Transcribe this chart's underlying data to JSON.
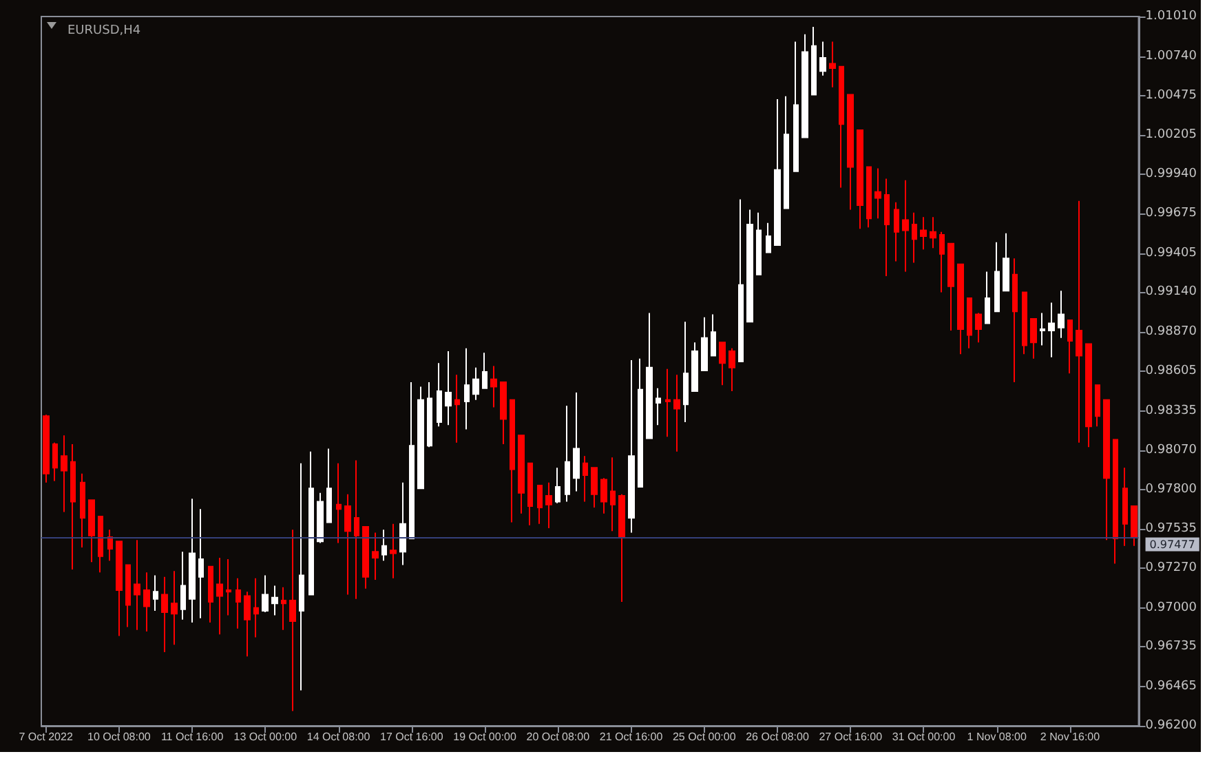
{
  "chart_data": {
    "type": "candlestick",
    "title": "EURUSD,H4",
    "categories": [
      "7 Oct 2022",
      null,
      null,
      null,
      null,
      null,
      null,
      null,
      "10 Oct 08:00",
      null,
      null,
      null,
      null,
      null,
      null,
      null,
      "11 Oct 16:00",
      null,
      null,
      null,
      null,
      null,
      null,
      null,
      "13 Oct 00:00",
      null,
      null,
      null,
      null,
      null,
      null,
      null,
      "14 Oct 08:00",
      null,
      null,
      null,
      null,
      null,
      null,
      null,
      "17 Oct 16:00",
      null,
      null,
      null,
      null,
      null,
      null,
      null,
      "19 Oct 00:00",
      null,
      null,
      null,
      null,
      null,
      null,
      null,
      "20 Oct 08:00",
      null,
      null,
      null,
      null,
      null,
      null,
      null,
      "21 Oct 16:00",
      null,
      null,
      null,
      null,
      null,
      null,
      null,
      "25 Oct 00:00",
      null,
      null,
      null,
      null,
      null,
      null,
      null,
      "26 Oct 08:00",
      null,
      null,
      null,
      null,
      null,
      null,
      null,
      "27 Oct 16:00",
      null,
      null,
      null,
      null,
      null,
      null,
      null,
      "31 Oct 00:00",
      null,
      null,
      null,
      null,
      null,
      null,
      null,
      "1 Nov 08:00",
      null,
      null,
      null,
      null,
      null,
      null,
      null,
      "2 Nov 16:00",
      null,
      null,
      null,
      null,
      null,
      null,
      null
    ],
    "ohlc": [
      [
        0.983,
        0.9831,
        0.9785,
        0.9791
      ],
      [
        0.9811,
        0.9812,
        0.9786,
        0.9795
      ],
      [
        0.9803,
        0.9817,
        0.9765,
        0.9793
      ],
      [
        0.9799,
        0.9811,
        0.9726,
        0.9772
      ],
      [
        0.9785,
        0.9791,
        0.9741,
        0.9761
      ],
      [
        0.9773,
        0.9773,
        0.9731,
        0.9749
      ],
      [
        0.9762,
        0.9762,
        0.9724,
        0.9735
      ],
      [
        0.9748,
        0.9753,
        0.9732,
        0.974
      ],
      [
        0.9745,
        0.9745,
        0.9681,
        0.9712
      ],
      [
        0.9729,
        0.9729,
        0.9687,
        0.9702
      ],
      [
        0.9716,
        0.9746,
        0.9685,
        0.9709
      ],
      [
        0.9712,
        0.9724,
        0.9684,
        0.9701
      ],
      [
        0.9706,
        0.9722,
        0.9698,
        0.9711
      ],
      [
        0.9709,
        0.9721,
        0.967,
        0.9697
      ],
      [
        0.9703,
        0.9725,
        0.9675,
        0.9696
      ],
      [
        0.9699,
        0.9738,
        0.9692,
        0.9715
      ],
      [
        0.9706,
        0.9774,
        0.969,
        0.9737
      ],
      [
        0.9721,
        0.9767,
        0.9693,
        0.9733
      ],
      [
        0.9728,
        0.9728,
        0.969,
        0.9704
      ],
      [
        0.9716,
        0.9734,
        0.9682,
        0.9708
      ],
      [
        0.9712,
        0.9733,
        0.9695,
        0.9711
      ],
      [
        0.9712,
        0.972,
        0.9686,
        0.9704
      ],
      [
        0.9708,
        0.9711,
        0.9667,
        0.9692
      ],
      [
        0.97,
        0.972,
        0.968,
        0.9696
      ],
      [
        0.9698,
        0.9722,
        0.9697,
        0.9709
      ],
      [
        0.9703,
        0.9715,
        0.9695,
        0.9707
      ],
      [
        0.9705,
        0.9714,
        0.9685,
        0.9703
      ],
      [
        0.9705,
        0.9753,
        0.963,
        0.9691
      ],
      [
        0.9698,
        0.9798,
        0.9644,
        0.9722
      ],
      [
        0.9709,
        0.9806,
        0.9709,
        0.9781
      ],
      [
        0.9745,
        0.9778,
        0.9744,
        0.9772
      ],
      [
        0.9758,
        0.9808,
        0.9758,
        0.9781
      ],
      [
        0.977,
        0.9798,
        0.9744,
        0.9767
      ],
      [
        0.9769,
        0.9777,
        0.9709,
        0.9752
      ],
      [
        0.9761,
        0.98,
        0.9706,
        0.9749
      ],
      [
        0.9755,
        0.9755,
        0.9713,
        0.9721
      ],
      [
        0.9738,
        0.9751,
        0.9719,
        0.9734
      ],
      [
        0.9736,
        0.9753,
        0.9732,
        0.9742
      ],
      [
        0.9739,
        0.9757,
        0.972,
        0.9737
      ],
      [
        0.9738,
        0.9785,
        0.9729,
        0.9757
      ],
      [
        0.9747,
        0.9853,
        0.9747,
        0.981
      ],
      [
        0.9781,
        0.985,
        0.9781,
        0.9841
      ],
      [
        0.981,
        0.9853,
        0.9809,
        0.9842
      ],
      [
        0.9826,
        0.9866,
        0.9823,
        0.9847
      ],
      [
        0.9837,
        0.9874,
        0.9824,
        0.9846
      ],
      [
        0.9841,
        0.9858,
        0.9812,
        0.9838
      ],
      [
        0.984,
        0.9876,
        0.9821,
        0.9851
      ],
      [
        0.9845,
        0.9863,
        0.9841,
        0.9855
      ],
      [
        0.9849,
        0.9873,
        0.9849,
        0.986
      ],
      [
        0.9855,
        0.9864,
        0.9836,
        0.985
      ],
      [
        0.9853,
        0.9853,
        0.9811,
        0.9828
      ],
      [
        0.9841,
        0.9841,
        0.9758,
        0.9794
      ],
      [
        0.9817,
        0.9817,
        0.9764,
        0.9778
      ],
      [
        0.9798,
        0.9798,
        0.9756,
        0.9769
      ],
      [
        0.9783,
        0.9783,
        0.9757,
        0.9768
      ],
      [
        0.9776,
        0.9785,
        0.9754,
        0.977
      ],
      [
        0.9772,
        0.9795,
        0.9771,
        0.9782
      ],
      [
        0.9777,
        0.9837,
        0.9772,
        0.9799
      ],
      [
        0.9788,
        0.9846,
        0.9779,
        0.9808
      ],
      [
        0.9798,
        0.9803,
        0.9772,
        0.979
      ],
      [
        0.9795,
        0.9795,
        0.9768,
        0.9777
      ],
      [
        0.9787,
        0.9788,
        0.9764,
        0.9772
      ],
      [
        0.9779,
        0.9802,
        0.9752,
        0.977
      ],
      [
        0.9776,
        0.9777,
        0.9704,
        0.9748
      ],
      [
        0.9761,
        0.9868,
        0.9751,
        0.9803
      ],
      [
        0.9782,
        0.9869,
        0.9782,
        0.9848
      ],
      [
        0.9815,
        0.99,
        0.9815,
        0.9863
      ],
      [
        0.9839,
        0.9849,
        0.9824,
        0.9842
      ],
      [
        0.9841,
        0.9862,
        0.9816,
        0.984
      ],
      [
        0.9841,
        0.9858,
        0.9806,
        0.9835
      ],
      [
        0.9838,
        0.9894,
        0.9826,
        0.9859
      ],
      [
        0.9847,
        0.988,
        0.9847,
        0.9874
      ],
      [
        0.9861,
        0.9897,
        0.9861,
        0.9883
      ],
      [
        0.9871,
        0.9899,
        0.9871,
        0.9887
      ],
      [
        0.988,
        0.988,
        0.9851,
        0.9866
      ],
      [
        0.9874,
        0.9876,
        0.9847,
        0.9863
      ],
      [
        0.9867,
        0.9977,
        0.9867,
        0.9919
      ],
      [
        0.9894,
        0.997,
        0.9894,
        0.996
      ],
      [
        0.9926,
        0.9968,
        0.9926,
        0.9956
      ],
      [
        0.9941,
        0.9961,
        0.9941,
        0.9952
      ],
      [
        0.9946,
        1.0045,
        0.9946,
        0.9997
      ],
      [
        0.9971,
        1.0047,
        0.9971,
        1.0021
      ],
      [
        0.9996,
        1.0084,
        0.9996,
        1.0041
      ],
      [
        1.0019,
        1.0089,
        1.0019,
        1.0077
      ],
      [
        1.0048,
        1.0094,
        1.0048,
        1.0081
      ],
      [
        1.0064,
        1.0084,
        1.0061,
        1.0073
      ],
      [
        1.0069,
        1.0084,
        1.0053,
        1.0066
      ],
      [
        1.0067,
        1.0067,
        0.9985,
        1.0028
      ],
      [
        1.0048,
        1.0048,
        0.997,
        0.9999
      ],
      [
        1.0024,
        1.0024,
        0.9957,
        0.9973
      ],
      [
        0.9999,
        0.9999,
        0.9958,
        0.9964
      ],
      [
        0.9982,
        0.9998,
        0.9964,
        0.9978
      ],
      [
        0.998,
        0.9991,
        0.9925,
        0.996
      ],
      [
        0.997,
        0.9975,
        0.9935,
        0.9955
      ],
      [
        0.9963,
        0.999,
        0.9928,
        0.9956
      ],
      [
        0.996,
        0.9968,
        0.9934,
        0.995
      ],
      [
        0.9956,
        0.9965,
        0.9943,
        0.9952
      ],
      [
        0.9955,
        0.9965,
        0.9944,
        0.9951
      ],
      [
        0.9953,
        0.9955,
        0.9914,
        0.994
      ],
      [
        0.9947,
        0.9947,
        0.9888,
        0.9918
      ],
      [
        0.9933,
        0.9933,
        0.9872,
        0.9889
      ],
      [
        0.991,
        0.991,
        0.9876,
        0.9885
      ],
      [
        0.9899,
        0.99,
        0.988,
        0.9889
      ],
      [
        0.9893,
        0.9928,
        0.9893,
        0.991
      ],
      [
        0.9901,
        0.9948,
        0.9901,
        0.9928
      ],
      [
        0.9915,
        0.9954,
        0.9915,
        0.9937
      ],
      [
        0.9926,
        0.9937,
        0.9853,
        0.9901
      ],
      [
        0.9914,
        0.9914,
        0.9872,
        0.9878
      ],
      [
        0.9896,
        0.9896,
        0.9869,
        0.988
      ],
      [
        0.9888,
        0.99,
        0.9878,
        0.9889
      ],
      [
        0.9888,
        0.9907,
        0.987,
        0.9893
      ],
      [
        0.989,
        0.9915,
        0.9883,
        0.9899
      ],
      [
        0.9895,
        0.9895,
        0.9859,
        0.9881
      ],
      [
        0.9888,
        0.9976,
        0.9812,
        0.9871
      ],
      [
        0.9879,
        0.9879,
        0.9809,
        0.9823
      ],
      [
        0.9851,
        0.9851,
        0.9823,
        0.983
      ],
      [
        0.9841,
        0.9841,
        0.9746,
        0.9788
      ],
      [
        0.9814,
        0.9814,
        0.973,
        0.9747
      ],
      [
        0.9781,
        0.9795,
        0.9742,
        0.9757
      ],
      [
        0.9769,
        0.9769,
        0.9742,
        0.97477
      ]
    ],
    "colors": [
      "#ff0000",
      "#ff0000",
      "#ff0000",
      "#ff0000",
      "#ff0000",
      "#ff0000",
      "#ff0000",
      "#ff0000",
      "#ff0000",
      "#ff0000",
      "#ff0000",
      "#ff0000",
      "#ffffff",
      "#ff0000",
      "#ff0000",
      "#ffffff",
      "#ffffff",
      "#ffffff",
      "#ff0000",
      "#ff0000",
      "#ff0000",
      "#ff0000",
      "#ff0000",
      "#ff0000",
      "#ffffff",
      "#ffffff",
      "#ff0000",
      "#ff0000",
      "#ffffff",
      "#ffffff",
      "#ffffff",
      "#ffffff",
      "#ff0000",
      "#ff0000",
      "#ff0000",
      "#ff0000",
      "#ff0000",
      "#ffffff",
      "#ff0000",
      "#ffffff",
      "#ffffff",
      "#ffffff",
      "#ffffff",
      "#ffffff",
      "#ffffff",
      "#ff0000",
      "#ffffff",
      "#ffffff",
      "#ffffff",
      "#ff0000",
      "#ff0000",
      "#ff0000",
      "#ff0000",
      "#ff0000",
      "#ff0000",
      "#ff0000",
      "#ffffff",
      "#ffffff",
      "#ffffff",
      "#ff0000",
      "#ff0000",
      "#ff0000",
      "#ff0000",
      "#ff0000",
      "#ffffff",
      "#ffffff",
      "#ffffff",
      "#ffffff",
      "#ff0000",
      "#ff0000",
      "#ffffff",
      "#ffffff",
      "#ffffff",
      "#ffffff",
      "#ff0000",
      "#ff0000",
      "#ffffff",
      "#ffffff",
      "#ffffff",
      "#ffffff",
      "#ffffff",
      "#ffffff",
      "#ffffff",
      "#ffffff",
      "#ffffff",
      "#ffffff",
      "#ff0000",
      "#ff0000",
      "#ff0000",
      "#ff0000",
      "#ff0000",
      "#ff0000",
      "#ff0000",
      "#ff0000",
      "#ff0000",
      "#ff0000",
      "#ff0000",
      "#ff0000",
      "#ff0000",
      "#ff0000",
      "#ff0000",
      "#ff0000",
      "#ff0000",
      "#ffffff",
      "#ffffff",
      "#ffffff",
      "#ff0000",
      "#ff0000",
      "#ff0000",
      "#ffffff",
      "#ffffff",
      "#ffffff",
      "#ff0000",
      "#ff0000",
      "#ff0000",
      "#ff0000",
      "#ff0000",
      "#ff0000",
      "#ff0000",
      "#ff0000"
    ],
    "ylim": [
      0.962,
      1.0101
    ],
    "yticks": [
      {
        "value": 1.0101,
        "label": "1.01010"
      },
      {
        "value": 1.0074,
        "label": "1.00740"
      },
      1.00475,
      1.00205,
      {
        "value": 0.9994,
        "label": "0.99940"
      },
      0.99675,
      0.99405,
      {
        "value": 0.9914,
        "label": "0.99140"
      },
      {
        "value": 0.9887,
        "label": "0.98870"
      },
      0.98605,
      0.98335,
      {
        "value": 0.9807,
        "label": "0.98070"
      },
      {
        "value": 0.978,
        "label": "0.97800"
      },
      0.97535,
      {
        "value": 0.9727,
        "label": "0.97270"
      },
      {
        "value": 0.97,
        "label": "0.97000"
      },
      0.96735,
      0.96465,
      {
        "value": 0.962,
        "label": "0.96200"
      }
    ],
    "ref_lines": [
      {
        "axis": "y",
        "value": 0.97477,
        "label": "0.97477",
        "color": "#34407a"
      }
    ],
    "grid": false
  }
}
